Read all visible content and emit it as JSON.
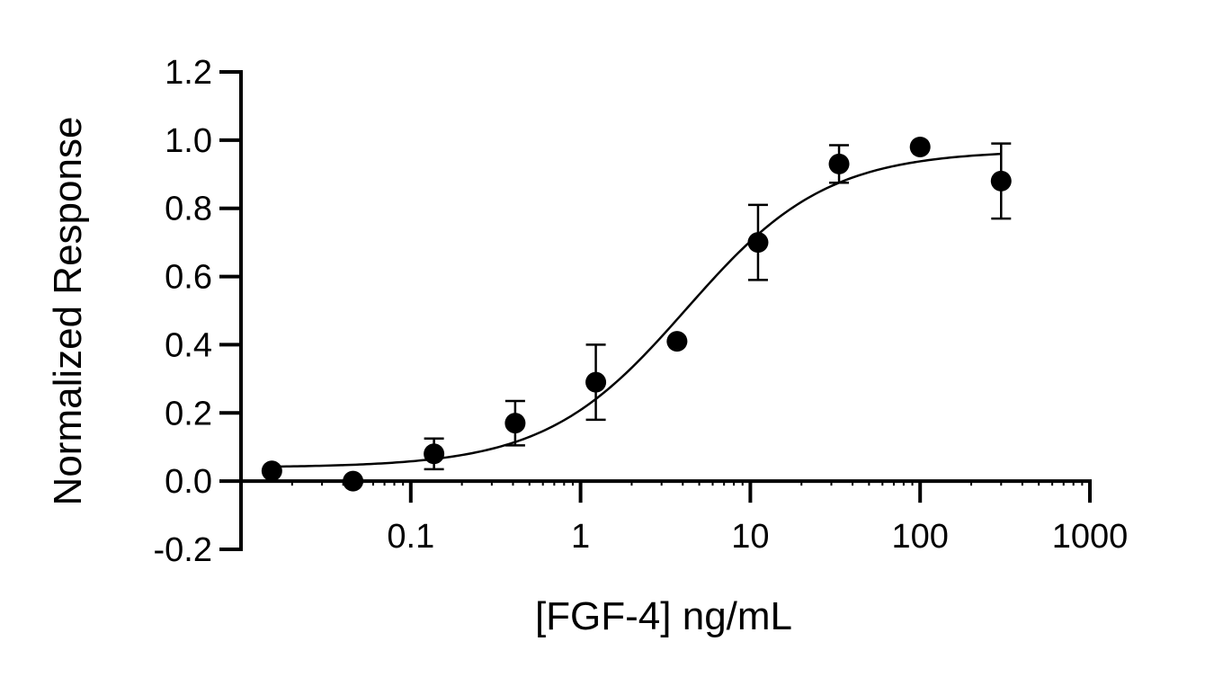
{
  "chart_data": {
    "type": "scatter",
    "title": "",
    "xlabel": "[FGF-4] ng/mL",
    "ylabel": "Normalized Response",
    "x_scale": "log",
    "xlim": [
      0.01,
      1000
    ],
    "ylim": [
      -0.2,
      1.2
    ],
    "x_ticks": [
      0.1,
      1,
      10,
      100,
      1000
    ],
    "x_tick_labels": [
      "0.1",
      "1",
      "10",
      "100",
      "1000"
    ],
    "y_ticks": [
      -0.2,
      0.0,
      0.2,
      0.4,
      0.6,
      0.8,
      1.0,
      1.2
    ],
    "y_tick_labels": [
      "-0.2",
      "0.0",
      "0.2",
      "0.4",
      "0.6",
      "0.8",
      "1.0",
      "1.2"
    ],
    "grid": false,
    "legend": "none",
    "series": [
      {
        "x": [
          0.0152,
          0.0457,
          0.137,
          0.412,
          1.23,
          3.7,
          11.1,
          33.3,
          100,
          300
        ],
        "y": [
          0.03,
          0.0,
          0.08,
          0.17,
          0.29,
          0.41,
          0.7,
          0.93,
          0.98,
          0.88
        ],
        "y_error": [
          0.0,
          0.0,
          0.045,
          0.065,
          0.11,
          0.0,
          0.11,
          0.055,
          0.0,
          0.11
        ]
      }
    ],
    "fit_curve": {
      "model": "four-parameter logistic",
      "bottom": 0.04,
      "top": 0.97,
      "ec50": 4.2,
      "hill_slope": 1.05
    },
    "colors": {
      "marker": "#000000",
      "line": "#000000"
    }
  }
}
